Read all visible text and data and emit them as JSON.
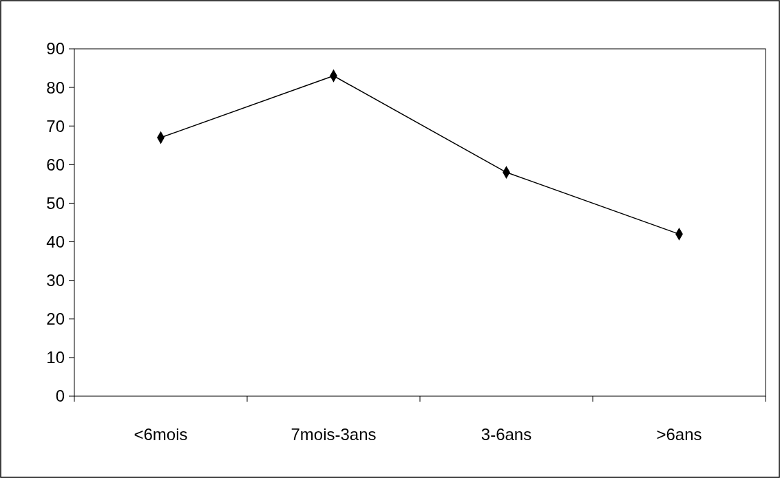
{
  "chart_data": {
    "type": "line",
    "categories": [
      "<6mois",
      "7mois-3ans",
      "3-6ans",
      ">6ans"
    ],
    "series": [
      {
        "color": "#000000",
        "values": [
          67,
          83,
          58,
          42
        ]
      }
    ],
    "ylim": [
      0,
      90
    ],
    "yticks": [
      0,
      10,
      20,
      30,
      40,
      50,
      60,
      70,
      80,
      90
    ],
    "marker": "diamond",
    "line_style": "solid",
    "grid": false
  }
}
